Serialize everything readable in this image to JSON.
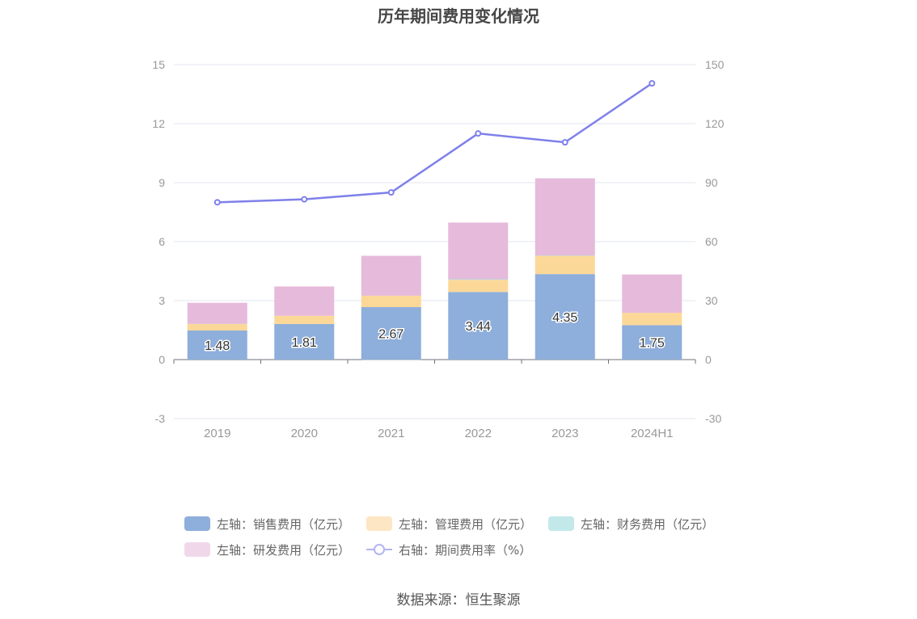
{
  "chart_data": {
    "type": "bar",
    "title": "历年期间费用变化情况",
    "categories": [
      "2019",
      "2020",
      "2021",
      "2022",
      "2023",
      "2024H1"
    ],
    "left_axis": {
      "ticks": [
        "-3",
        "0",
        "3",
        "6",
        "9",
        "12",
        "15"
      ],
      "ylim": [
        -3,
        15
      ]
    },
    "right_axis": {
      "ticks": [
        "-30",
        "0",
        "30",
        "60",
        "90",
        "120",
        "150"
      ],
      "ylim": [
        -30,
        150
      ]
    },
    "stacked": true,
    "series": [
      {
        "name": "左轴：销售费用（亿元）",
        "axis": "left",
        "color": "#8eaedb",
        "values": [
          1.48,
          1.81,
          2.67,
          3.44,
          4.35,
          1.75
        ],
        "show_labels": true
      },
      {
        "name": "左轴：管理费用（亿元）",
        "axis": "left",
        "color": "#fcd898",
        "values": [
          0.33,
          0.42,
          0.58,
          0.62,
          0.93,
          0.63
        ]
      },
      {
        "name": "左轴：财务费用（亿元）",
        "axis": "left",
        "color": "#a6e0e0",
        "values": [
          0.01,
          0.0,
          -0.01,
          0.03,
          0.02,
          0.0
        ]
      },
      {
        "name": "左轴：研发费用（亿元）",
        "axis": "left",
        "color": "#e6badb",
        "values": [
          1.07,
          1.49,
          2.03,
          2.88,
          3.92,
          1.95
        ]
      },
      {
        "name": "右轴：期间费用率（%）",
        "axis": "right",
        "type": "line",
        "color": "#7e80ea",
        "values": [
          80,
          81.5,
          85,
          115,
          110.5,
          140.5
        ]
      }
    ],
    "grid": true,
    "legend_position": "bottom"
  },
  "legend": {
    "items": [
      {
        "label": "左轴：销售费用（亿元）",
        "color": "#8eaedb"
      },
      {
        "label": "左轴：管理费用（亿元）",
        "color": "#fde6c4"
      },
      {
        "label": "左轴：财务费用（亿元）",
        "color": "#c2e8ea"
      },
      {
        "label": "左轴：研发费用（亿元）",
        "color": "#f0d8ea"
      },
      {
        "label": "右轴：期间费用率（%）",
        "color": "#b3b5f2"
      }
    ]
  },
  "source": "数据来源：恒生聚源"
}
